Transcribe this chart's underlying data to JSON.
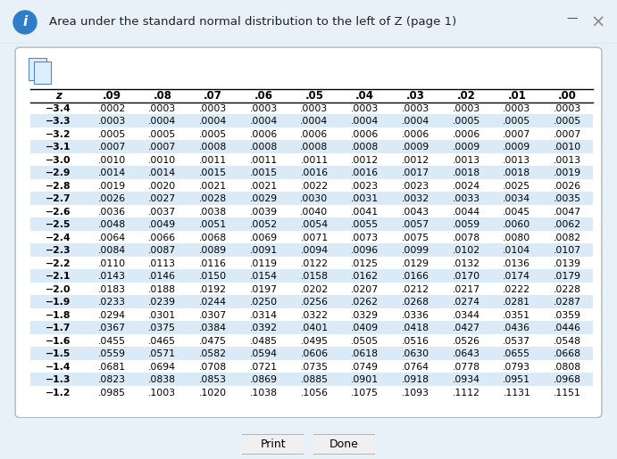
{
  "title": "Area under the standard normal distribution to the left of Z (page 1)",
  "col_headers": [
    "z",
    ".09",
    ".08",
    ".07",
    ".06",
    ".05",
    ".04",
    ".03",
    ".02",
    ".01",
    ".00"
  ],
  "rows": [
    [
      "−3.4",
      ".0002",
      ".0003",
      ".0003",
      ".0003",
      ".0003",
      ".0003",
      ".0003",
      ".0003",
      ".0003",
      ".0003"
    ],
    [
      "−3.3",
      ".0003",
      ".0004",
      ".0004",
      ".0004",
      ".0004",
      ".0004",
      ".0004",
      ".0005",
      ".0005",
      ".0005"
    ],
    [
      "−3.2",
      ".0005",
      ".0005",
      ".0005",
      ".0006",
      ".0006",
      ".0006",
      ".0006",
      ".0006",
      ".0007",
      ".0007"
    ],
    [
      "−3.1",
      ".0007",
      ".0007",
      ".0008",
      ".0008",
      ".0008",
      ".0008",
      ".0009",
      ".0009",
      ".0009",
      ".0010"
    ],
    [
      "−3.0",
      ".0010",
      ".0010",
      ".0011",
      ".0011",
      ".0011",
      ".0012",
      ".0012",
      ".0013",
      ".0013",
      ".0013"
    ],
    [
      "−2.9",
      ".0014",
      ".0014",
      ".0015",
      ".0015",
      ".0016",
      ".0016",
      ".0017",
      ".0018",
      ".0018",
      ".0019"
    ],
    [
      "−2.8",
      ".0019",
      ".0020",
      ".0021",
      ".0021",
      ".0022",
      ".0023",
      ".0023",
      ".0024",
      ".0025",
      ".0026"
    ],
    [
      "−2.7",
      ".0026",
      ".0027",
      ".0028",
      ".0029",
      ".0030",
      ".0031",
      ".0032",
      ".0033",
      ".0034",
      ".0035"
    ],
    [
      "−2.6",
      ".0036",
      ".0037",
      ".0038",
      ".0039",
      ".0040",
      ".0041",
      ".0043",
      ".0044",
      ".0045",
      ".0047"
    ],
    [
      "−2.5",
      ".0048",
      ".0049",
      ".0051",
      ".0052",
      ".0054",
      ".0055",
      ".0057",
      ".0059",
      ".0060",
      ".0062"
    ],
    [
      "−2.4",
      ".0064",
      ".0066",
      ".0068",
      ".0069",
      ".0071",
      ".0073",
      ".0075",
      ".0078",
      ".0080",
      ".0082"
    ],
    [
      "−2.3",
      ".0084",
      ".0087",
      ".0089",
      ".0091",
      ".0094",
      ".0096",
      ".0099",
      ".0102",
      ".0104",
      ".0107"
    ],
    [
      "−2.2",
      ".0110",
      ".0113",
      ".0116",
      ".0119",
      ".0122",
      ".0125",
      ".0129",
      ".0132",
      ".0136",
      ".0139"
    ],
    [
      "−2.1",
      ".0143",
      ".0146",
      ".0150",
      ".0154",
      ".0158",
      ".0162",
      ".0166",
      ".0170",
      ".0174",
      ".0179"
    ],
    [
      "−2.0",
      ".0183",
      ".0188",
      ".0192",
      ".0197",
      ".0202",
      ".0207",
      ".0212",
      ".0217",
      ".0222",
      ".0228"
    ],
    [
      "−1.9",
      ".0233",
      ".0239",
      ".0244",
      ".0250",
      ".0256",
      ".0262",
      ".0268",
      ".0274",
      ".0281",
      ".0287"
    ],
    [
      "−1.8",
      ".0294",
      ".0301",
      ".0307",
      ".0314",
      ".0322",
      ".0329",
      ".0336",
      ".0344",
      ".0351",
      ".0359"
    ],
    [
      "−1.7",
      ".0367",
      ".0375",
      ".0384",
      ".0392",
      ".0401",
      ".0409",
      ".0418",
      ".0427",
      ".0436",
      ".0446"
    ],
    [
      "−1.6",
      ".0455",
      ".0465",
      ".0475",
      ".0485",
      ".0495",
      ".0505",
      ".0516",
      ".0526",
      ".0537",
      ".0548"
    ],
    [
      "−1.5",
      ".0559",
      ".0571",
      ".0582",
      ".0594",
      ".0606",
      ".0618",
      ".0630",
      ".0643",
      ".0655",
      ".0668"
    ],
    [
      "−1.4",
      ".0681",
      ".0694",
      ".0708",
      ".0721",
      ".0735",
      ".0749",
      ".0764",
      ".0778",
      ".0793",
      ".0808"
    ],
    [
      "−1.3",
      ".0823",
      ".0838",
      ".0853",
      ".0869",
      ".0885",
      ".0901",
      ".0918",
      ".0934",
      ".0951",
      ".0968"
    ],
    [
      "−1.2",
      ".0985",
      ".1003",
      ".1020",
      ".1038",
      ".1056",
      ".1075",
      ".1093",
      ".1112",
      ".1131",
      ".1151"
    ]
  ],
  "shaded_rows": [
    1,
    3,
    5,
    7,
    9,
    11,
    13,
    15,
    17,
    19,
    21
  ],
  "shade_color": "#daeaf6",
  "bg_color": "#ffffff",
  "title_bg": "#e8f0f8",
  "outer_bg": "#e8f0f8",
  "button_labels": [
    "Print",
    "Done"
  ],
  "font_size_title": 9.5,
  "font_size_table": 7.8,
  "font_size_header": 8.5
}
